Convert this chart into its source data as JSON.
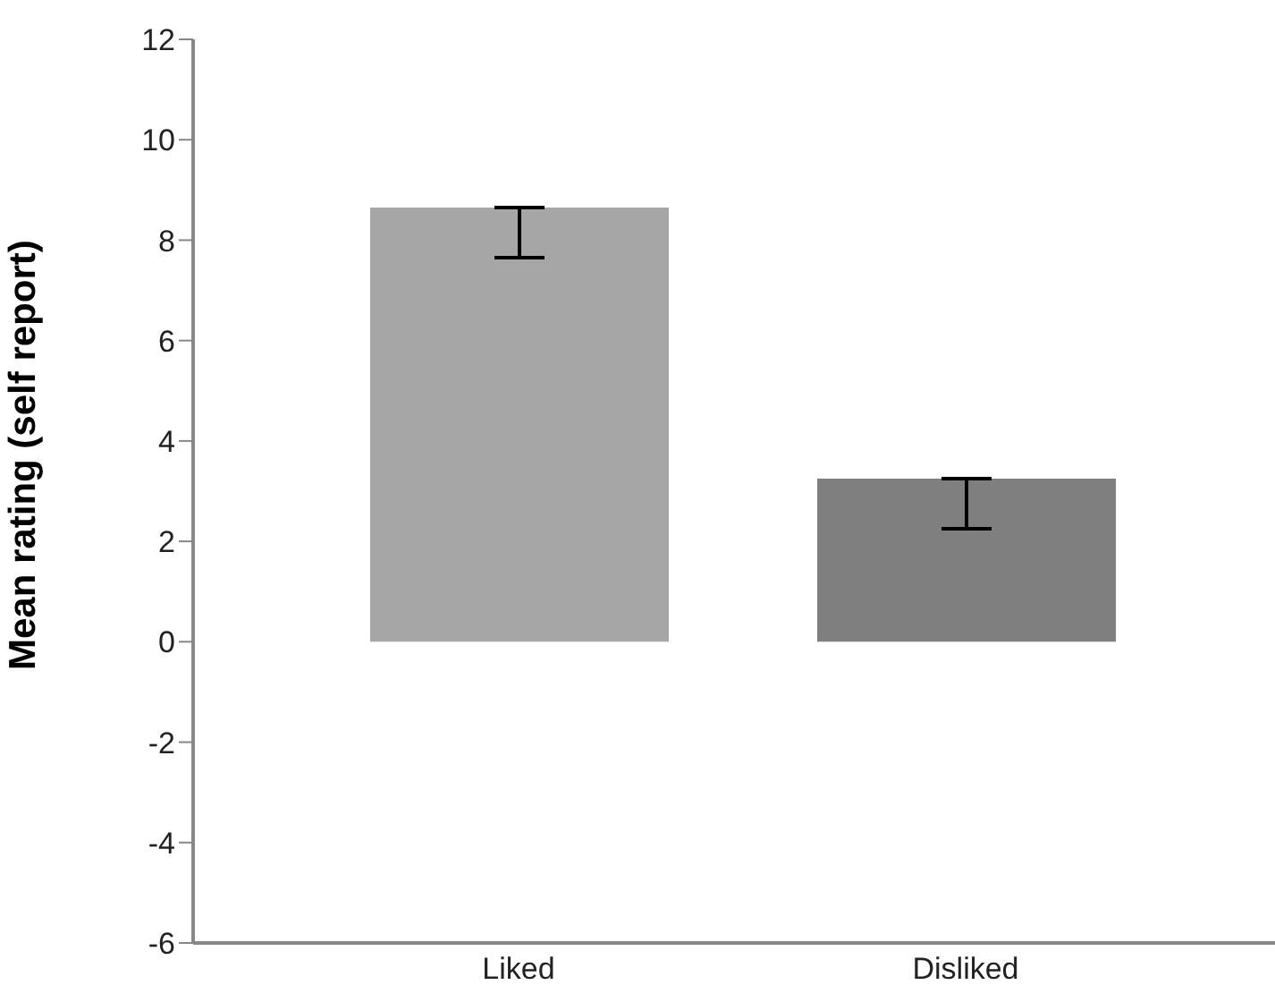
{
  "chart_data": {
    "type": "bar",
    "ylabel": "Mean rating (self report)",
    "categories": [
      "Liked",
      "Disliked"
    ],
    "values": [
      8.65,
      3.25
    ],
    "colors": [
      "#a6a6a6",
      "#7f7f7f"
    ],
    "errors": [
      [
        7.65,
        8.65
      ],
      [
        2.25,
        3.25
      ]
    ],
    "ylim": [
      -6,
      12
    ],
    "yticks": [
      -6,
      -4,
      -2,
      0,
      2,
      4,
      6,
      8,
      10,
      12
    ],
    "grid": false,
    "legend": false
  }
}
